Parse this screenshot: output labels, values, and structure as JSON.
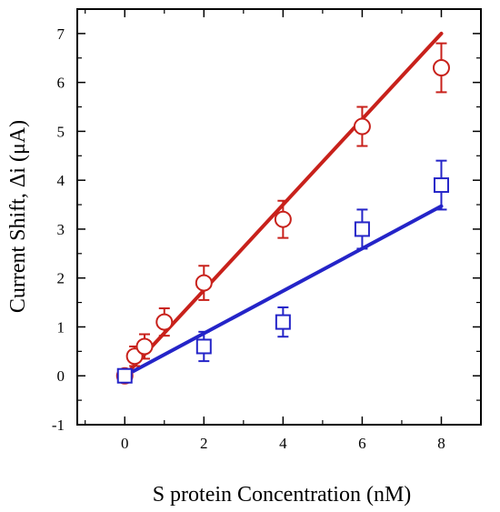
{
  "chart_data": {
    "type": "scatter",
    "xlabel": "S protein Concentration (nM)",
    "ylabel": "Current Shift, Δi (μA)",
    "title": "",
    "xlim": [
      -1.2,
      9
    ],
    "ylim": [
      -1,
      7.5
    ],
    "xticks": [
      "0",
      "2",
      "4",
      "6",
      "8"
    ],
    "xtick_values": [
      0,
      2,
      4,
      6,
      8
    ],
    "yticks": [
      "-1",
      "0",
      "1",
      "2",
      "3",
      "4",
      "5",
      "6",
      "7"
    ],
    "ytick_values": [
      -1,
      0,
      1,
      2,
      3,
      4,
      5,
      6,
      7
    ],
    "grid": false,
    "legend": "none",
    "series": [
      {
        "marker": "circle",
        "color": "#c8211b",
        "x": [
          0,
          0.25,
          0.5,
          1,
          2,
          4,
          6,
          8
        ],
        "y": [
          0,
          0.4,
          0.6,
          1.1,
          1.9,
          3.2,
          5.1,
          6.3
        ],
        "err": [
          0.1,
          0.2,
          0.25,
          0.28,
          0.35,
          0.38,
          0.4,
          0.5
        ],
        "fit": {
          "x": [
            0,
            8
          ],
          "y": [
            0,
            7.0
          ]
        }
      },
      {
        "marker": "square",
        "color": "#2424c8",
        "x": [
          0,
          2,
          4,
          6,
          8
        ],
        "y": [
          0,
          0.6,
          1.1,
          3.0,
          3.9
        ],
        "err": [
          0.1,
          0.3,
          0.3,
          0.4,
          0.5
        ],
        "fit": {
          "x": [
            0,
            8
          ],
          "y": [
            0,
            3.47
          ]
        }
      }
    ]
  }
}
